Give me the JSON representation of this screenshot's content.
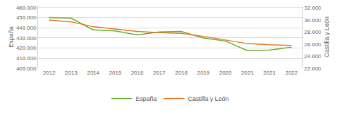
{
  "chart_data": {
    "type": "line",
    "categories": [
      "2012",
      "2013",
      "2014",
      "2015",
      "2016",
      "2017",
      "2018",
      "2019",
      "2020",
      "2021",
      "2021",
      "2022"
    ],
    "series": [
      {
        "name": "España",
        "color": "#6aab2e",
        "axis": "y",
        "values": [
          450000,
          449500,
          438000,
          437000,
          433000,
          436000,
          436500,
          430000,
          427000,
          417500,
          418000,
          421000
        ]
      },
      {
        "name": "Castilla y León",
        "color": "#e87722",
        "axis": "y2",
        "values": [
          30000,
          29700,
          28900,
          28500,
          28100,
          27900,
          27800,
          27300,
          26700,
          26100,
          25900,
          25800
        ]
      }
    ],
    "ylabel": "España",
    "y2label": "Castilla y León",
    "ylim": [
      400000,
      462000
    ],
    "yticks": [
      {
        "value": 400000,
        "label": "400.000"
      },
      {
        "value": 410000,
        "label": "410.000"
      },
      {
        "value": 420000,
        "label": "420.000"
      },
      {
        "value": 430000,
        "label": "430.000"
      },
      {
        "value": 440000,
        "label": "440.000"
      },
      {
        "value": 450000,
        "label": "450.000"
      },
      {
        "value": 460000,
        "label": "460.000"
      }
    ],
    "y2lim": [
      22000,
      32400
    ],
    "y2ticks": [
      {
        "value": 22000,
        "label": "22.000"
      },
      {
        "value": 24000,
        "label": "24.000"
      },
      {
        "value": 26000,
        "label": "26.000"
      },
      {
        "value": 28000,
        "label": "28.000"
      },
      {
        "value": 30000,
        "label": "30.000"
      },
      {
        "value": 32000,
        "label": "32.000"
      }
    ],
    "grid": true,
    "legend": "bottom"
  }
}
